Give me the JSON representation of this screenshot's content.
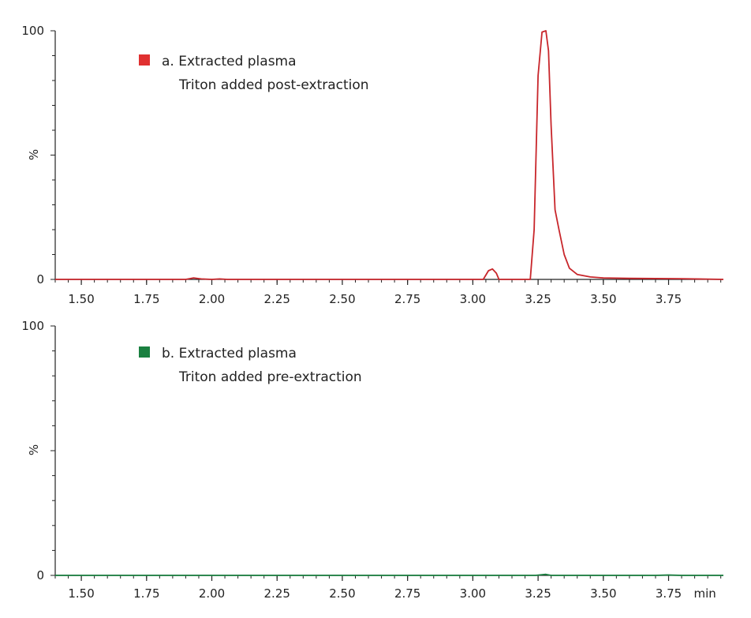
{
  "chart_data": [
    {
      "type": "line",
      "panel": "a",
      "legend": {
        "line1": "a. Extracted plasma",
        "line2": "Triton added post-extraction",
        "color": "#e03030"
      },
      "ylabel": "%",
      "y_ticks": [
        "0",
        "100"
      ],
      "ylim": [
        0,
        100
      ],
      "xlim": [
        1.4,
        3.96
      ],
      "x_ticks": [
        1.5,
        1.75,
        2.0,
        2.25,
        2.5,
        2.75,
        3.0,
        3.25,
        3.5,
        3.75
      ],
      "x_tick_labels": [
        "1.50",
        "1.75",
        "2.00",
        "2.25",
        "2.50",
        "2.75",
        "3.00",
        "3.25",
        "3.50",
        "3.75"
      ],
      "x_unit": "",
      "series": [
        {
          "color": "#c8262b",
          "x": [
            1.4,
            1.9,
            1.93,
            1.96,
            2.0,
            2.03,
            2.06,
            3.04,
            3.06,
            3.075,
            3.09,
            3.1,
            3.22,
            3.235,
            3.25,
            3.265,
            3.28,
            3.29,
            3.3,
            3.315,
            3.33,
            3.35,
            3.37,
            3.4,
            3.45,
            3.5,
            3.6,
            3.8,
            3.96
          ],
          "y": [
            0,
            0,
            0.6,
            0.2,
            0,
            0.2,
            0,
            0,
            3.5,
            4.2,
            2.5,
            0,
            0,
            20,
            82,
            99.5,
            100,
            92,
            62,
            28,
            20,
            10,
            4.5,
            2,
            1,
            0.6,
            0.4,
            0.3,
            0
          ]
        }
      ]
    },
    {
      "type": "line",
      "panel": "b",
      "legend": {
        "line1": "b. Extracted plasma",
        "line2": "Triton added pre-extraction",
        "color": "#1a8040"
      },
      "ylabel": "%",
      "y_ticks": [
        "0",
        "100"
      ],
      "ylim": [
        0,
        100
      ],
      "xlim": [
        1.4,
        3.96
      ],
      "x_ticks": [
        1.5,
        1.75,
        2.0,
        2.25,
        2.5,
        2.75,
        3.0,
        3.25,
        3.5,
        3.75
      ],
      "x_tick_labels": [
        "1.50",
        "1.75",
        "2.00",
        "2.25",
        "2.50",
        "2.75",
        "3.00",
        "3.25",
        "3.50",
        "3.75"
      ],
      "x_unit": "min",
      "series": [
        {
          "color": "#1a8040",
          "x": [
            1.4,
            3.24,
            3.265,
            3.28,
            3.3,
            3.7,
            3.75,
            3.8,
            3.96
          ],
          "y": [
            0,
            0,
            0.3,
            0.4,
            0,
            0,
            0.15,
            0,
            0
          ]
        }
      ]
    }
  ]
}
